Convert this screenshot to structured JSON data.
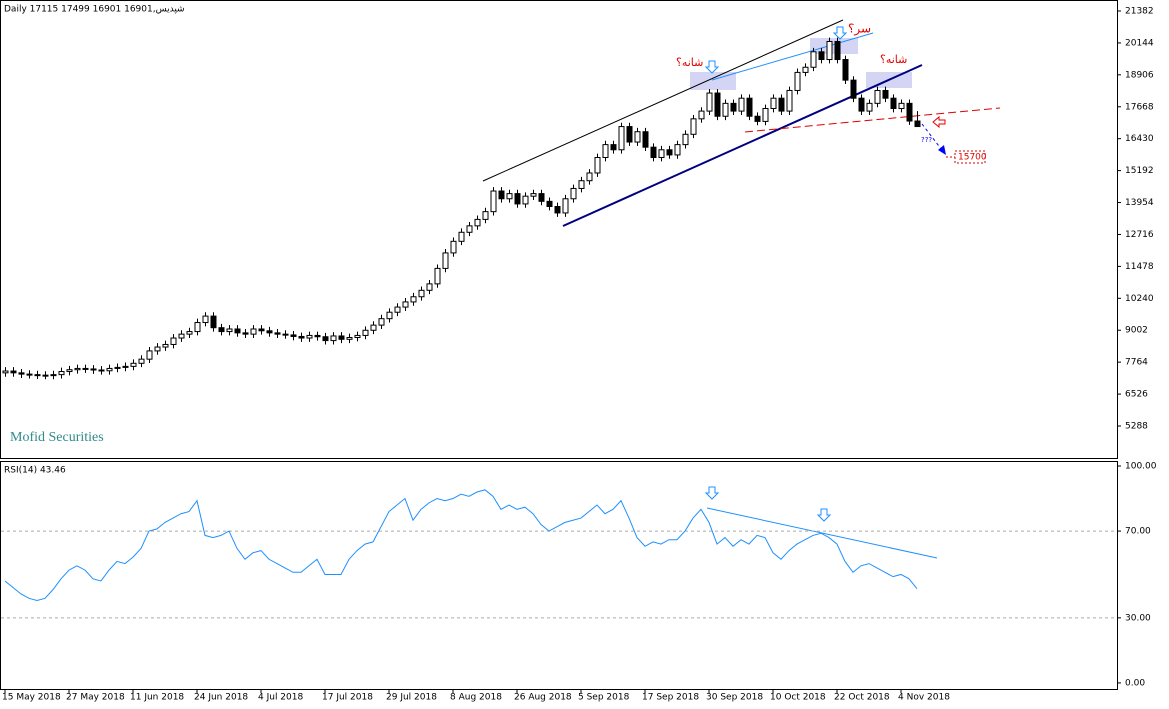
{
  "chart_data": [
    {
      "type": "candlestick",
      "title": "شپدیس,Daily  17115 17499 16901 16901",
      "watermark": "Mofid Securities",
      "annotations": [
        {
          "text": "شانه؟"
        },
        {
          "text": "سر؟"
        },
        {
          "text": "شانه؟"
        },
        {
          "text": "15700"
        },
        {
          "text": "???"
        }
      ],
      "up_color": "#ffffff",
      "down_color": "#000000",
      "ylim": [
        4047,
        21653
      ],
      "yticks": [
        21382,
        20144,
        18906,
        17668,
        16430,
        15192,
        13954,
        12716,
        11478,
        10240,
        9002,
        7764,
        6526,
        5288
      ],
      "open": [
        7350,
        7420,
        7350,
        7300,
        7280,
        7260,
        7250,
        7280,
        7400,
        7470,
        7520,
        7500,
        7460,
        7430,
        7520,
        7560,
        7600,
        7720,
        7880,
        8200,
        8350,
        8450,
        8700,
        8850,
        8950,
        9300,
        9550,
        9100,
        8950,
        9050,
        8900,
        8850,
        9050,
        8980,
        8900,
        8850,
        8820,
        8760,
        8700,
        8800,
        8750,
        8600,
        8780,
        8650,
        8720,
        8800,
        9000,
        9200,
        9450,
        9700,
        9900,
        10100,
        10300,
        10550,
        10800,
        11400,
        12000,
        12450,
        12800,
        13050,
        13300,
        13600,
        14400,
        14100,
        14300,
        13900,
        14200,
        14300,
        14000,
        13800,
        13550,
        14100,
        14500,
        14800,
        15100,
        15700,
        16200,
        16000,
        16900,
        16300,
        16700,
        16100,
        15700,
        16000,
        15800,
        16200,
        16600,
        17200,
        17500,
        18200,
        17300,
        17800,
        17500,
        18000,
        17300,
        17100,
        17600,
        18000,
        17500,
        18300,
        19000,
        19200,
        19800,
        19500,
        20200,
        19500,
        18700,
        18000,
        17500,
        17800,
        18300,
        18000,
        17600,
        17800,
        17115
      ],
      "high": [
        7570,
        7570,
        7500,
        7450,
        7430,
        7410,
        7430,
        7550,
        7620,
        7670,
        7670,
        7650,
        7610,
        7670,
        7710,
        7750,
        7870,
        8030,
        8350,
        8500,
        8600,
        8850,
        9000,
        9100,
        9450,
        9700,
        9700,
        9250,
        9200,
        9200,
        9050,
        9200,
        9200,
        9130,
        9050,
        9000,
        8970,
        8910,
        8950,
        8950,
        8900,
        8930,
        8930,
        8870,
        8950,
        9150,
        9350,
        9600,
        9850,
        10050,
        10250,
        10450,
        10700,
        10950,
        11550,
        12150,
        12600,
        12950,
        13200,
        13450,
        13750,
        14550,
        14550,
        14450,
        14450,
        14350,
        14450,
        14450,
        14150,
        13950,
        14250,
        14650,
        14950,
        15250,
        15850,
        16350,
        16350,
        17050,
        17050,
        16850,
        16850,
        16250,
        16150,
        16150,
        16350,
        16750,
        17350,
        17650,
        18350,
        18350,
        17950,
        17950,
        18150,
        18150,
        17450,
        17750,
        18150,
        18150,
        18450,
        19150,
        19350,
        19950,
        19950,
        20350,
        20350,
        19650,
        18850,
        18150,
        17950,
        18450,
        18450,
        18150,
        17950,
        17950,
        17499
      ],
      "low": [
        7200,
        7200,
        7150,
        7130,
        7110,
        7100,
        7100,
        7130,
        7250,
        7320,
        7350,
        7310,
        7280,
        7280,
        7370,
        7410,
        7450,
        7570,
        7730,
        8050,
        8200,
        8300,
        8550,
        8700,
        8800,
        9150,
        8950,
        8800,
        8800,
        8750,
        8700,
        8700,
        8830,
        8750,
        8700,
        8670,
        8610,
        8550,
        8550,
        8600,
        8450,
        8450,
        8500,
        8500,
        8570,
        8650,
        8850,
        9050,
        9300,
        9550,
        9750,
        9950,
        10150,
        10400,
        10650,
        11250,
        11850,
        12300,
        12650,
        12900,
        13150,
        13450,
        13950,
        13950,
        13750,
        13750,
        14050,
        13850,
        13650,
        13400,
        13400,
        13950,
        14350,
        14650,
        14950,
        15550,
        15850,
        15850,
        16150,
        16150,
        15950,
        15550,
        15550,
        15650,
        15650,
        16050,
        16450,
        17050,
        17350,
        17150,
        17150,
        17350,
        17350,
        17150,
        16950,
        16950,
        17450,
        17350,
        17350,
        18150,
        18850,
        19050,
        19350,
        19350,
        19350,
        18550,
        17850,
        17350,
        17350,
        17650,
        17850,
        17450,
        17450,
        16965,
        16901
      ],
      "close": [
        7420,
        7350,
        7300,
        7280,
        7260,
        7250,
        7280,
        7400,
        7470,
        7520,
        7500,
        7460,
        7430,
        7520,
        7560,
        7600,
        7720,
        7880,
        8200,
        8350,
        8450,
        8700,
        8850,
        8950,
        9300,
        9550,
        9100,
        8950,
        9050,
        8900,
        8850,
        9050,
        8980,
        8900,
        8850,
        8820,
        8760,
        8700,
        8800,
        8750,
        8600,
        8780,
        8650,
        8720,
        8800,
        9000,
        9200,
        9450,
        9700,
        9900,
        10100,
        10300,
        10550,
        10800,
        11400,
        12000,
        12450,
        12800,
        13050,
        13300,
        13600,
        14400,
        14100,
        14300,
        13900,
        14200,
        14300,
        14000,
        13800,
        13550,
        14100,
        14500,
        14800,
        15100,
        15700,
        16200,
        16000,
        16900,
        16300,
        16700,
        16100,
        15700,
        16000,
        15800,
        16200,
        16600,
        17200,
        17500,
        18200,
        17300,
        17800,
        17500,
        18000,
        17300,
        17100,
        17600,
        18000,
        17500,
        18300,
        19000,
        19200,
        19800,
        19500,
        20200,
        19500,
        18700,
        18000,
        17500,
        17800,
        18300,
        18000,
        17600,
        17800,
        17115,
        16901
      ]
    },
    {
      "type": "line",
      "title": "RSI(14) 43.46",
      "color": "#1e90ff",
      "ylim": [
        -2.8,
        102.3
      ],
      "yticks": [
        {
          "value": 100,
          "label": "100.00"
        },
        {
          "value": 70,
          "label": "70.00"
        },
        {
          "value": 30,
          "label": "30.00"
        },
        {
          "value": 0,
          "label": "0.00"
        }
      ],
      "grid_levels": [
        70,
        30
      ],
      "categories": [
        "15 May 2018",
        null,
        null,
        null,
        null,
        null,
        null,
        null,
        "27 May 2018",
        null,
        null,
        null,
        null,
        null,
        null,
        null,
        "11 Jun 2018",
        null,
        null,
        null,
        null,
        null,
        null,
        null,
        "24 Jun 2018",
        null,
        null,
        null,
        null,
        null,
        null,
        null,
        "4 Jul 2018",
        null,
        null,
        null,
        null,
        null,
        null,
        null,
        "17 Jul 2018",
        null,
        null,
        null,
        null,
        null,
        null,
        null,
        "29 Jul 2018",
        null,
        null,
        null,
        null,
        null,
        null,
        null,
        "8 Aug 2018",
        null,
        null,
        null,
        null,
        null,
        null,
        null,
        "26 Aug 2018",
        null,
        null,
        null,
        null,
        null,
        null,
        null,
        "5 Sep 2018",
        null,
        null,
        null,
        null,
        null,
        null,
        null,
        "17 Sep 2018",
        null,
        null,
        null,
        null,
        null,
        null,
        null,
        "30 Sep 2018",
        null,
        null,
        null,
        null,
        null,
        null,
        null,
        "10 Oct 2018",
        null,
        null,
        null,
        null,
        null,
        null,
        null,
        "22 Oct 2018",
        null,
        null,
        null,
        null,
        null,
        null,
        null,
        "4 Nov 2018",
        null,
        null
      ],
      "values": [
        47,
        44,
        41,
        39,
        38,
        39,
        43,
        48,
        52,
        54,
        52,
        48,
        47,
        52,
        56,
        55,
        58,
        62,
        70,
        71,
        74,
        76,
        78,
        79,
        84,
        68,
        67,
        68,
        70,
        62,
        57,
        60,
        61,
        57,
        55,
        53,
        51,
        51,
        54,
        57,
        50,
        50,
        50,
        57,
        61,
        64,
        65,
        72,
        79,
        82,
        85,
        75,
        80,
        83,
        85,
        84,
        85,
        87,
        86,
        88,
        89,
        86,
        80,
        82,
        80,
        81,
        78,
        73,
        70,
        72,
        74,
        75,
        76,
        79,
        82,
        78,
        80,
        84,
        76,
        67,
        63,
        65,
        64,
        66,
        66,
        70,
        76,
        80,
        74,
        64,
        67,
        63,
        66,
        64,
        68,
        67,
        60,
        57,
        61,
        64,
        66,
        68,
        69,
        67,
        64,
        56,
        51,
        54,
        55,
        53,
        51,
        49,
        50,
        48,
        43.46
      ]
    }
  ]
}
